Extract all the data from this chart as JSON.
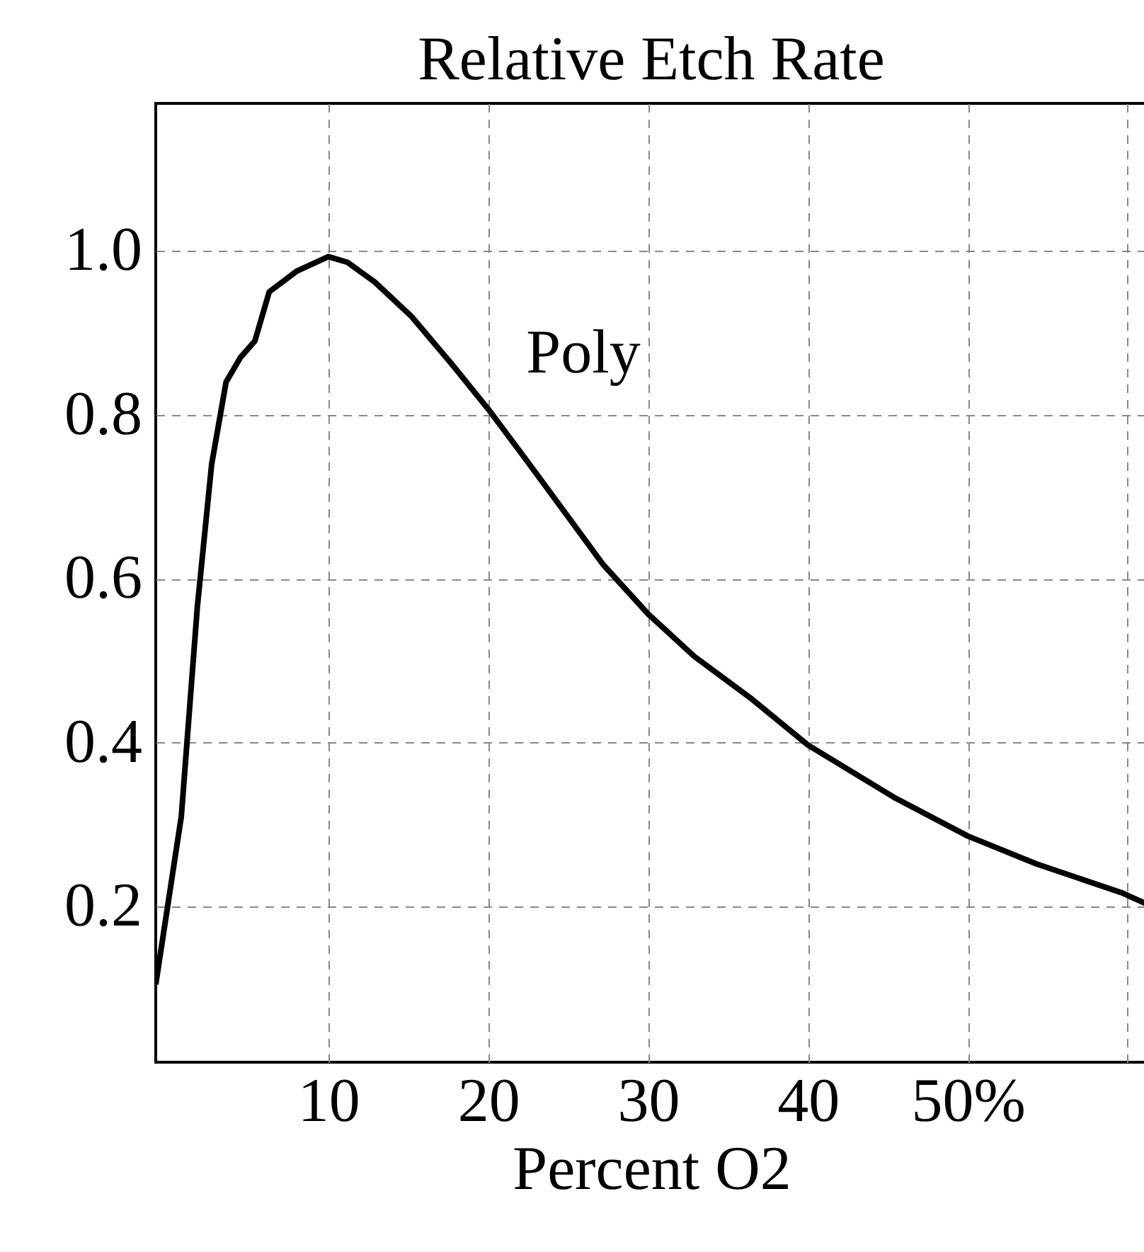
{
  "chart_data": {
    "type": "line",
    "title": "Relative Etch Rate",
    "xlabel": "Percent O2",
    "x": [
      -0.8,
      0.8,
      1.8,
      2.7,
      3.6,
      4.5,
      5.4,
      6.3,
      8,
      10,
      11.2,
      12.9,
      15.2,
      17.8,
      20,
      22.3,
      24.9,
      27.2,
      30,
      32.9,
      36.5,
      40,
      45.4,
      50,
      54.3,
      59.6,
      61.2
    ],
    "series": [
      {
        "color": "#000000",
        "values": [
          0.105,
          0.31,
          0.565,
          0.74,
          0.84,
          0.87,
          0.89,
          0.95,
          0.975,
          0.993,
          0.986,
          0.962,
          0.92,
          0.86,
          0.807,
          0.747,
          0.678,
          0.617,
          0.557,
          0.505,
          0.453,
          0.397,
          0.333,
          0.286,
          0.252,
          0.217,
          0.203
        ]
      }
    ],
    "xlim": [
      -0.8,
      61.2
    ],
    "ylim": [
      0.01,
      1.18
    ],
    "xticks": [
      10,
      20,
      30,
      40,
      {
        "value": 50,
        "label": "50%"
      },
      {
        "value": 60,
        "label": null
      }
    ],
    "yticks": [
      {
        "value": 0.2,
        "label": "0.2"
      },
      {
        "value": 0.4,
        "label": "0.4"
      },
      {
        "value": 0.6,
        "label": "0.6"
      },
      {
        "value": 0.8,
        "label": "0.8"
      },
      {
        "value": 1,
        "label": "1.0"
      }
    ],
    "grid": true,
    "line_style": "solid",
    "marker": "none",
    "annotations": [
      "Poly"
    ]
  }
}
